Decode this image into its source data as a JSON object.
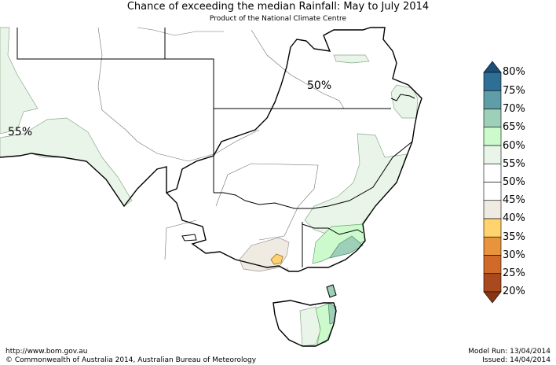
{
  "title": "Chance of exceeding the median Rainfall: May to July 2014",
  "subtitle": "Product of the National Climate Centre",
  "map_labels": [
    {
      "text": "55%"
    },
    {
      "text": "50%"
    }
  ],
  "legend": {
    "labels": [
      "80%",
      "75%",
      "70%",
      "65%",
      "60%",
      "55%",
      "50%",
      "45%",
      "40%",
      "35%",
      "30%",
      "25%",
      "20%"
    ],
    "colors": [
      "#2f6f96",
      "#5f9ea8",
      "#9ecfb8",
      "#ccfacc",
      "#e8f5e8",
      "#ffffff",
      "#ffffff",
      "#efeae2",
      "#ffd36e",
      "#e8943c",
      "#d06a2a",
      "#a8491e"
    ],
    "top_arrow_color": "#1b4f7a",
    "bottom_arrow_color": "#8a3414"
  },
  "footer": {
    "url": "http://www.bom.gov.au",
    "copyright": "©  Commonwealth of Australia 2014, Australian Bureau of Meteorology",
    "model_run": "Model Run: 13/04/2014",
    "issued": "Issued: 14/04/2014"
  }
}
